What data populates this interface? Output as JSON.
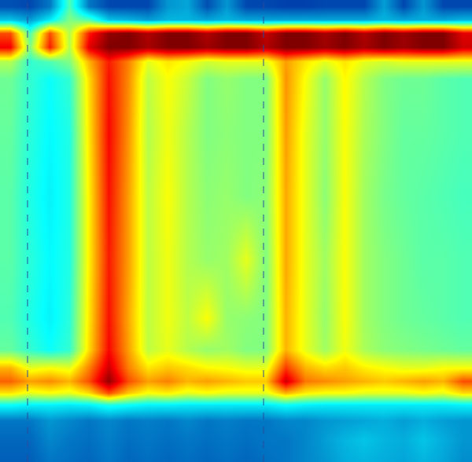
{
  "chart_data": {
    "type": "heatmap",
    "color": "Jet",
    "tick_labels": false,
    "line_style": "dashed",
    "vlines": [
      35,
      335
    ],
    "xlim": [
      0,
      600
    ],
    "ylim": [
      588,
      0
    ],
    "zlim": [
      0,
      1
    ],
    "x": [
      12.5,
      37.5,
      62.5,
      87.5,
      112.5,
      137.5,
      162.5,
      187.5,
      212.5,
      237.5,
      262.5,
      287.5,
      312.5,
      337.5,
      362.5,
      387.5,
      412.5,
      437.5,
      462.5,
      487.5,
      512.5,
      537.5,
      562.5,
      587.5
    ],
    "y": [
      8,
      25,
      42,
      60,
      78,
      100,
      170,
      250,
      330,
      405,
      445,
      468,
      485,
      500,
      515,
      535,
      560,
      585
    ],
    "z": [
      [
        0.15,
        0.14,
        0.2,
        0.45,
        0.2,
        0.14,
        0.14,
        0.14,
        0.24,
        0.26,
        0.15,
        0.24,
        0.14,
        0.14,
        0.13,
        0.13,
        0.14,
        0.14,
        0.14,
        0.25,
        0.14,
        0.24,
        0.14,
        0.14
      ],
      [
        0.3,
        0.25,
        0.35,
        0.5,
        0.45,
        0.3,
        0.28,
        0.25,
        0.28,
        0.28,
        0.26,
        0.28,
        0.26,
        0.26,
        0.26,
        0.26,
        0.26,
        0.26,
        0.26,
        0.28,
        0.26,
        0.27,
        0.26,
        0.28
      ],
      [
        0.8,
        0.45,
        0.8,
        0.55,
        0.85,
        0.98,
        1,
        0.95,
        1,
        1,
        0.95,
        1,
        1,
        0.93,
        1,
        1,
        0.96,
        1,
        0.95,
        1,
        0.97,
        1,
        1,
        0.9
      ],
      [
        0.88,
        0.5,
        0.85,
        0.55,
        0.9,
        1,
        1,
        0.96,
        1,
        1,
        0.97,
        1,
        1,
        0.95,
        1,
        1,
        0.97,
        1,
        0.96,
        1,
        0.97,
        1,
        1,
        0.92
      ],
      [
        0.55,
        0.42,
        0.45,
        0.5,
        0.7,
        0.85,
        0.75,
        0.6,
        0.65,
        0.62,
        0.58,
        0.6,
        0.6,
        0.6,
        0.72,
        0.65,
        0.6,
        0.65,
        0.6,
        0.58,
        0.6,
        0.6,
        0.6,
        0.6
      ],
      [
        0.48,
        0.42,
        0.38,
        0.42,
        0.66,
        0.86,
        0.74,
        0.56,
        0.62,
        0.57,
        0.5,
        0.52,
        0.5,
        0.5,
        0.73,
        0.62,
        0.52,
        0.63,
        0.55,
        0.5,
        0.48,
        0.48,
        0.46,
        0.45
      ],
      [
        0.47,
        0.41,
        0.37,
        0.4,
        0.65,
        0.87,
        0.73,
        0.55,
        0.61,
        0.55,
        0.5,
        0.51,
        0.5,
        0.5,
        0.72,
        0.6,
        0.52,
        0.62,
        0.54,
        0.5,
        0.47,
        0.47,
        0.46,
        0.45
      ],
      [
        0.46,
        0.4,
        0.36,
        0.4,
        0.64,
        0.86,
        0.72,
        0.56,
        0.62,
        0.55,
        0.51,
        0.52,
        0.5,
        0.51,
        0.71,
        0.6,
        0.51,
        0.62,
        0.53,
        0.49,
        0.47,
        0.46,
        0.45,
        0.44
      ],
      [
        0.46,
        0.41,
        0.37,
        0.4,
        0.64,
        0.85,
        0.72,
        0.56,
        0.61,
        0.55,
        0.52,
        0.53,
        0.6,
        0.5,
        0.71,
        0.6,
        0.53,
        0.62,
        0.53,
        0.5,
        0.48,
        0.46,
        0.46,
        0.45
      ],
      [
        0.45,
        0.4,
        0.36,
        0.41,
        0.65,
        0.86,
        0.71,
        0.56,
        0.61,
        0.56,
        0.62,
        0.52,
        0.51,
        0.5,
        0.7,
        0.6,
        0.52,
        0.62,
        0.53,
        0.5,
        0.48,
        0.47,
        0.46,
        0.45
      ],
      [
        0.47,
        0.42,
        0.38,
        0.42,
        0.66,
        0.87,
        0.72,
        0.56,
        0.6,
        0.55,
        0.52,
        0.53,
        0.5,
        0.5,
        0.7,
        0.6,
        0.53,
        0.61,
        0.54,
        0.51,
        0.5,
        0.49,
        0.48,
        0.47
      ],
      [
        0.7,
        0.6,
        0.62,
        0.6,
        0.75,
        0.92,
        0.75,
        0.65,
        0.68,
        0.66,
        0.63,
        0.62,
        0.6,
        0.6,
        0.82,
        0.7,
        0.66,
        0.68,
        0.64,
        0.62,
        0.6,
        0.6,
        0.62,
        0.62
      ],
      [
        0.78,
        0.72,
        0.74,
        0.7,
        0.8,
        0.98,
        0.8,
        0.72,
        0.75,
        0.7,
        0.72,
        0.7,
        0.68,
        0.68,
        0.92,
        0.76,
        0.74,
        0.72,
        0.7,
        0.68,
        0.7,
        0.72,
        0.7,
        0.8
      ],
      [
        0.65,
        0.6,
        0.62,
        0.6,
        0.66,
        0.8,
        0.68,
        0.62,
        0.64,
        0.6,
        0.62,
        0.6,
        0.6,
        0.6,
        0.7,
        0.64,
        0.62,
        0.62,
        0.6,
        0.6,
        0.6,
        0.62,
        0.6,
        0.66
      ],
      [
        0.38,
        0.36,
        0.36,
        0.35,
        0.36,
        0.4,
        0.38,
        0.36,
        0.36,
        0.35,
        0.35,
        0.35,
        0.35,
        0.35,
        0.38,
        0.36,
        0.35,
        0.35,
        0.35,
        0.35,
        0.35,
        0.35,
        0.35,
        0.36
      ],
      [
        0.2,
        0.2,
        0.24,
        0.22,
        0.2,
        0.22,
        0.2,
        0.21,
        0.2,
        0.22,
        0.2,
        0.21,
        0.2,
        0.2,
        0.22,
        0.22,
        0.24,
        0.25,
        0.26,
        0.27,
        0.25,
        0.27,
        0.25,
        0.24
      ],
      [
        0.18,
        0.18,
        0.22,
        0.2,
        0.19,
        0.21,
        0.19,
        0.2,
        0.19,
        0.2,
        0.19,
        0.2,
        0.19,
        0.2,
        0.2,
        0.22,
        0.25,
        0.28,
        0.3,
        0.28,
        0.27,
        0.3,
        0.27,
        0.24
      ],
      [
        0.17,
        0.17,
        0.2,
        0.19,
        0.18,
        0.2,
        0.18,
        0.19,
        0.18,
        0.19,
        0.18,
        0.19,
        0.18,
        0.19,
        0.2,
        0.22,
        0.24,
        0.27,
        0.28,
        0.27,
        0.26,
        0.28,
        0.26,
        0.23
      ]
    ]
  }
}
